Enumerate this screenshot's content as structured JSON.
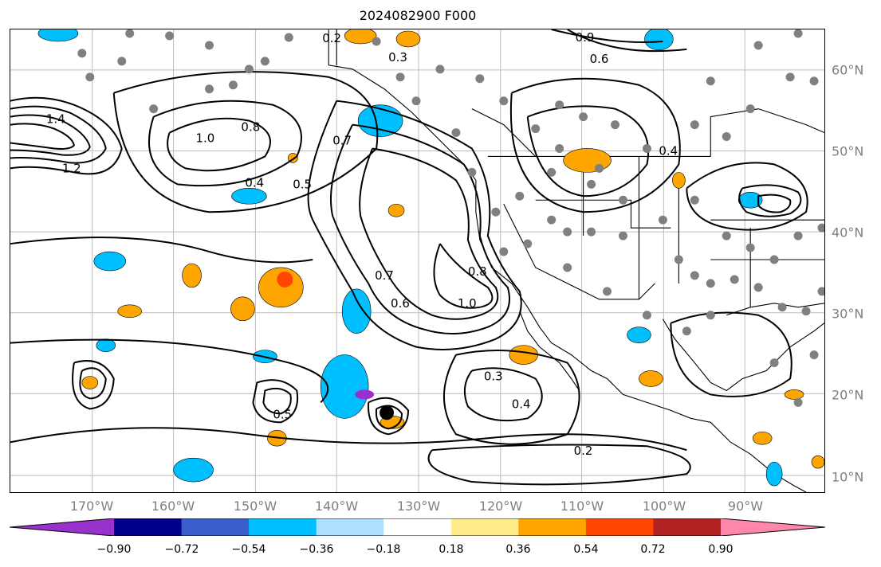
{
  "title": "2024082900 F000",
  "x_ticks": [
    "170°W",
    "160°W",
    "150°W",
    "140°W",
    "130°W",
    "120°W",
    "110°W",
    "100°W",
    "90°W"
  ],
  "y_ticks": [
    "60°N",
    "50°N",
    "40°N",
    "30°N",
    "20°N",
    "10°N"
  ],
  "contour_labels": [
    "0.2",
    "0.3",
    "0.4",
    "0.5",
    "0.6",
    "0.7",
    "0.8",
    "0.9",
    "1.0",
    "1.2",
    "1.4",
    "0.8",
    "0.7",
    "0.4",
    "0.5",
    "0.6",
    "1.0",
    "0.4",
    "0.2",
    "0.3"
  ],
  "colorbar": {
    "ticks": [
      "−0.90",
      "−0.72",
      "−0.54",
      "−0.36",
      "−0.18",
      "0.18",
      "0.36",
      "0.54",
      "0.72",
      "0.90"
    ],
    "colors": [
      "#9932CC",
      "#00008B",
      "#3A5FCD",
      "#00BFFF",
      "#ADDFFF",
      "#FFFFFF",
      "#FFEC8B",
      "#FFA500",
      "#FF4500",
      "#B22222",
      "#FF88AA"
    ]
  },
  "map": {
    "ocean": "#ffffff",
    "contour_color": "#000000",
    "grid_color": "#999999",
    "station_color": "#808080",
    "marker_color": "#000000"
  }
}
